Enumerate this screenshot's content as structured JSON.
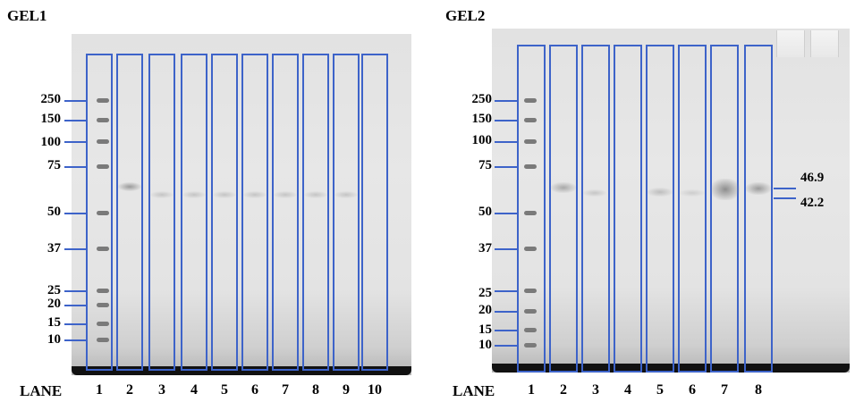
{
  "gel1": {
    "title": "GEL1",
    "lane_word": "LANE",
    "lanes": [
      "1",
      "2",
      "3",
      "4",
      "5",
      "6",
      "7",
      "8",
      "9",
      "10"
    ],
    "markers": [
      "250",
      "150",
      "100",
      "75",
      "50",
      "37",
      "25",
      "20",
      "15",
      "10"
    ]
  },
  "gel2": {
    "title": "GEL2",
    "lane_word": "LANE",
    "lanes": [
      "1",
      "2",
      "3",
      "4",
      "5",
      "6",
      "7",
      "8"
    ],
    "markers": [
      "250",
      "150",
      "100",
      "75",
      "50",
      "37",
      "25",
      "20",
      "15",
      "10"
    ],
    "side_labels": [
      "46.9",
      "42.2"
    ]
  },
  "colors": {
    "box": "#3d63c9",
    "gel": "#e4e4e4"
  }
}
